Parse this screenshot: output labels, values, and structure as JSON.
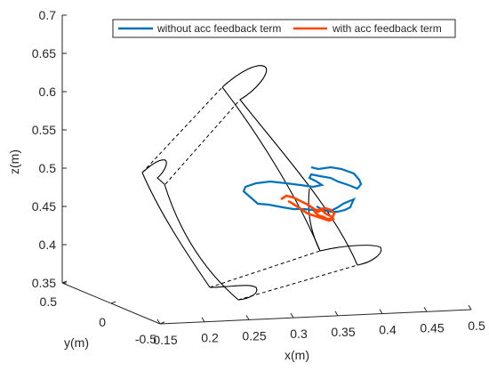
{
  "chart_data": {
    "type": "line",
    "projection": "3d",
    "xlabel": "x(m)",
    "ylabel": "y(m)",
    "zlabel": "z(m)",
    "xlim": [
      0.15,
      0.5
    ],
    "ylim": [
      -0.5,
      0.5
    ],
    "zlim": [
      0.35,
      0.7
    ],
    "x_ticks": [
      "0.15",
      "0.2",
      "0.25",
      "0.3",
      "0.35",
      "0.4",
      "0.45",
      "0.5"
    ],
    "y_ticks": [
      "-0.5",
      "0",
      "0.5"
    ],
    "z_ticks": [
      "0.35",
      "0.4",
      "0.45",
      "0.5",
      "0.55",
      "0.6",
      "0.65",
      "0.7"
    ],
    "legend_position": "top-right",
    "series": [
      {
        "name": "without acc feedback term",
        "color": "#0072BD"
      },
      {
        "name": "with acc feedback term",
        "color": "#FF4500"
      }
    ],
    "workspace_outline_color": "#000000"
  }
}
